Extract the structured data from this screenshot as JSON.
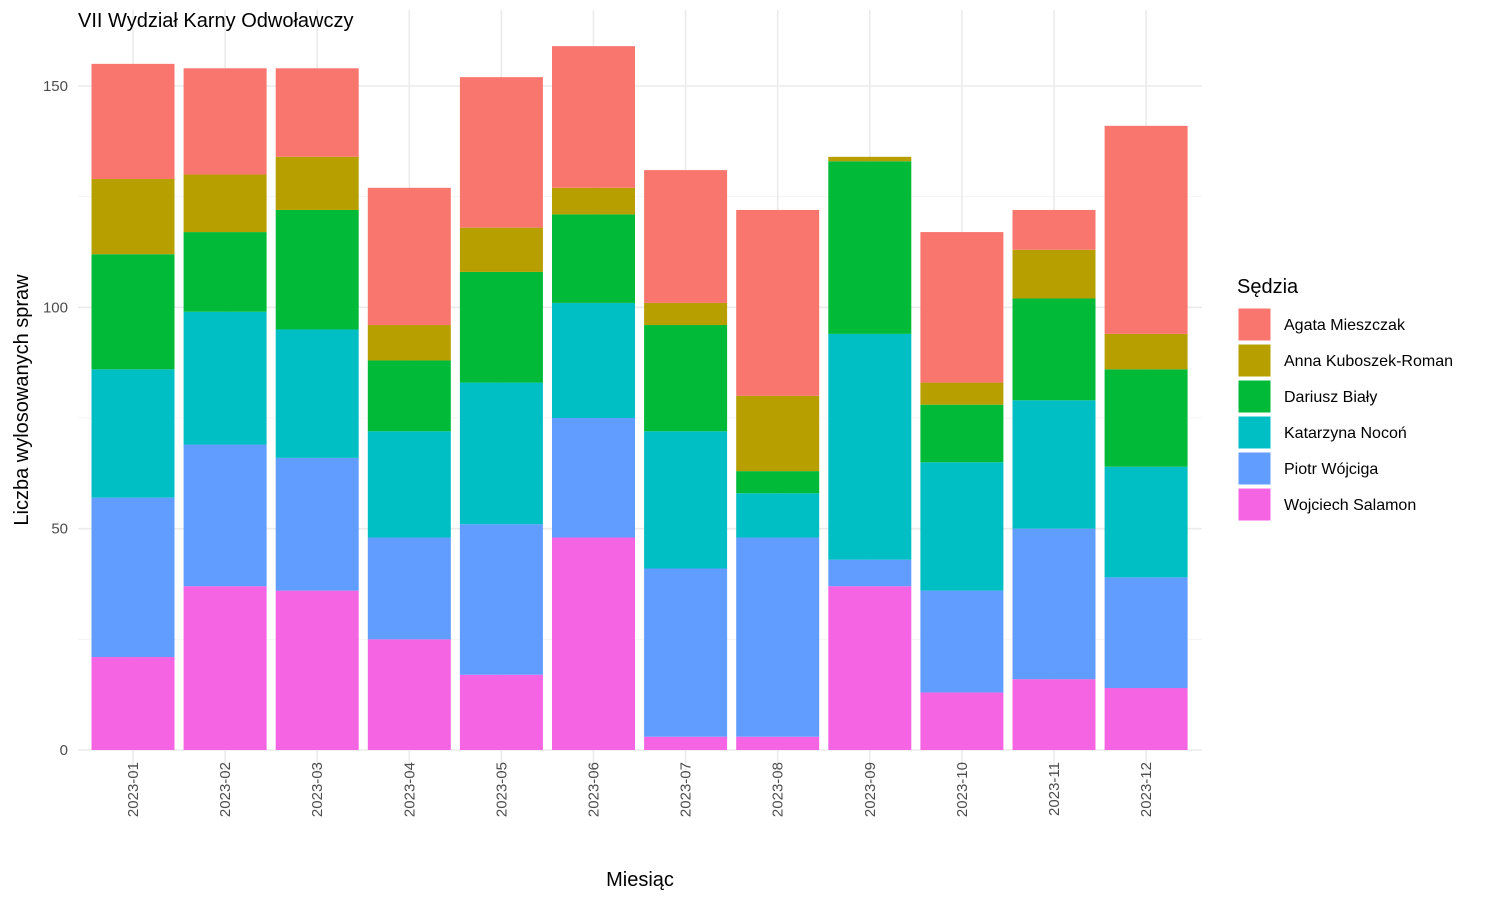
{
  "chart_data": {
    "type": "bar",
    "stacked": true,
    "title": "VII Wydział Karny Odwoławczy",
    "xlabel": "Miesiąc",
    "ylabel": "Liczba wylosowanych spraw",
    "ylim": [
      0,
      160
    ],
    "yticks": [
      0,
      50,
      100,
      150
    ],
    "grid": true,
    "legend_title": "Sędzia",
    "legend_position": "right",
    "categories": [
      "2023-01",
      "2023-02",
      "2023-03",
      "2023-04",
      "2023-05",
      "2023-06",
      "2023-07",
      "2023-08",
      "2023-09",
      "2023-10",
      "2023-11",
      "2023-12"
    ],
    "series": [
      {
        "name": "Agata Mieszczak",
        "color": "#F8766D",
        "values": [
          26,
          24,
          20,
          31,
          34,
          32,
          30,
          42,
          0,
          34,
          9,
          47
        ]
      },
      {
        "name": "Anna Kuboszek-Roman",
        "color": "#B79F00",
        "values": [
          17,
          13,
          12,
          8,
          10,
          6,
          5,
          17,
          1,
          5,
          11,
          8
        ]
      },
      {
        "name": "Dariusz Biały",
        "color": "#00BA38",
        "values": [
          26,
          18,
          27,
          16,
          25,
          20,
          24,
          5,
          39,
          13,
          23,
          22
        ]
      },
      {
        "name": "Katarzyna Nocoń",
        "color": "#00BFC4",
        "values": [
          29,
          30,
          29,
          24,
          32,
          26,
          31,
          10,
          51,
          29,
          29,
          25
        ]
      },
      {
        "name": "Piotr Wójciga",
        "color": "#619CFF",
        "values": [
          36,
          32,
          30,
          23,
          34,
          27,
          38,
          45,
          6,
          23,
          34,
          25
        ]
      },
      {
        "name": "Wojciech Salamon",
        "color": "#F564E3",
        "values": [
          21,
          37,
          36,
          25,
          17,
          48,
          3,
          3,
          37,
          13,
          16,
          14
        ]
      }
    ]
  }
}
